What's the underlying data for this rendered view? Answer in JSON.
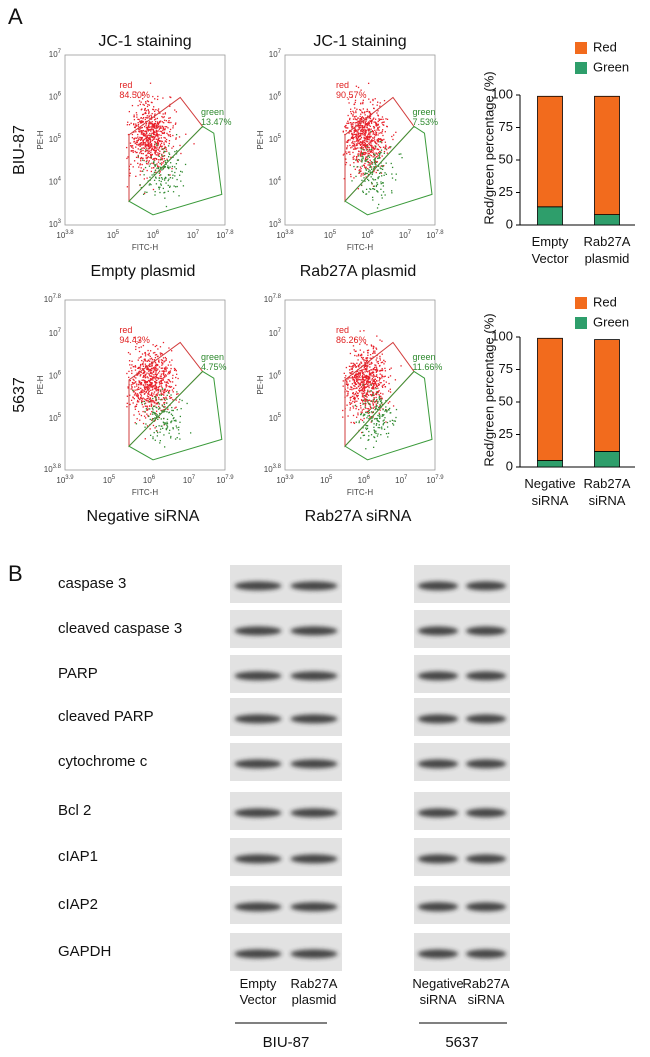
{
  "panel_a": {
    "label": "A",
    "rows": [
      {
        "label": "BIU-87",
        "plots": [
          {
            "title": "JC-1 staining",
            "y_label": "PE-H",
            "x_label": "FITC-H",
            "tick_base": "10",
            "x_ticks": [
              "3.8",
              "5",
              "6",
              "7",
              "7.8"
            ],
            "y_ticks": [
              "3",
              "4",
              "5",
              "6",
              "7"
            ],
            "red_gate": {
              "label": "red",
              "percent": "84.50%"
            },
            "green_gate": {
              "label": "green",
              "percent": "13.47%"
            },
            "caption": "Empty plasmid"
          },
          {
            "title": "JC-1 staining",
            "y_label": "PE-H",
            "x_label": "FITC-H",
            "tick_base": "10",
            "x_ticks": [
              "3.8",
              "5",
              "6",
              "7",
              "7.8"
            ],
            "y_ticks": [
              "3",
              "4",
              "5",
              "6",
              "7"
            ],
            "red_gate": {
              "label": "red",
              "percent": "90.57%"
            },
            "green_gate": {
              "label": "green",
              "percent": "7.53%"
            },
            "caption": "Rab27A plasmid"
          }
        ],
        "bar_chart": {
          "type": "bar",
          "stacked": true,
          "y_label": "Red/green percentage (%)",
          "categories": [
            "Empty Vector",
            "Rab27A plasmid"
          ],
          "series": [
            {
              "name": "Red",
              "color": "#f26b1d",
              "values": [
                85,
                91
              ]
            },
            {
              "name": "Green",
              "color": "#2e9e6b",
              "values": [
                14,
                8
              ]
            }
          ],
          "ylim": [
            0,
            100
          ],
          "yticks": [
            0,
            25,
            50,
            75,
            100
          ]
        }
      },
      {
        "label": "5637",
        "plots": [
          {
            "y_label": "PE-H",
            "x_label": "FITC-H",
            "tick_base": "10",
            "x_ticks": [
              "3.9",
              "5",
              "6",
              "7",
              "7.9"
            ],
            "y_ticks": [
              "3.8",
              "5",
              "6",
              "7",
              "7.8"
            ],
            "red_gate": {
              "label": "red",
              "percent": "94.43%"
            },
            "green_gate": {
              "label": "green",
              "percent": "4.75%"
            },
            "caption": "Negative siRNA"
          },
          {
            "y_label": "PE-H",
            "x_label": "FITC-H",
            "tick_base": "10",
            "x_ticks": [
              "3.9",
              "5",
              "6",
              "7",
              "7.9"
            ],
            "y_ticks": [
              "3.8",
              "5",
              "6",
              "7",
              "7.8"
            ],
            "red_gate": {
              "label": "red",
              "percent": "86.26%"
            },
            "green_gate": {
              "label": "green",
              "percent": "11.66%"
            },
            "caption": "Rab27A siRNA"
          }
        ],
        "bar_chart": {
          "type": "bar",
          "stacked": true,
          "y_label": "Red/green percentage (%)",
          "categories": [
            "Negative siRNA",
            "Rab27A siRNA"
          ],
          "series": [
            {
              "name": "Red",
              "color": "#f26b1d",
              "values": [
                94,
                86
              ]
            },
            {
              "name": "Green",
              "color": "#2e9e6b",
              "values": [
                5,
                12
              ]
            }
          ],
          "ylim": [
            0,
            100
          ],
          "yticks": [
            0,
            25,
            50,
            75,
            100
          ]
        }
      }
    ]
  },
  "panel_b": {
    "label": "B",
    "proteins": [
      "caspase 3",
      "cleaved caspase 3",
      "PARP",
      "cleaved PARP",
      "cytochrome c",
      "Bcl 2",
      "cIAP1",
      "cIAP2",
      "GAPDH"
    ],
    "groups": [
      {
        "name": "BIU-87",
        "lanes": [
          "Empty Vector",
          "Rab27A plasmid"
        ]
      },
      {
        "name": "5637",
        "lanes": [
          "Negative siRNA",
          "Rab27A siRNA"
        ]
      }
    ]
  }
}
